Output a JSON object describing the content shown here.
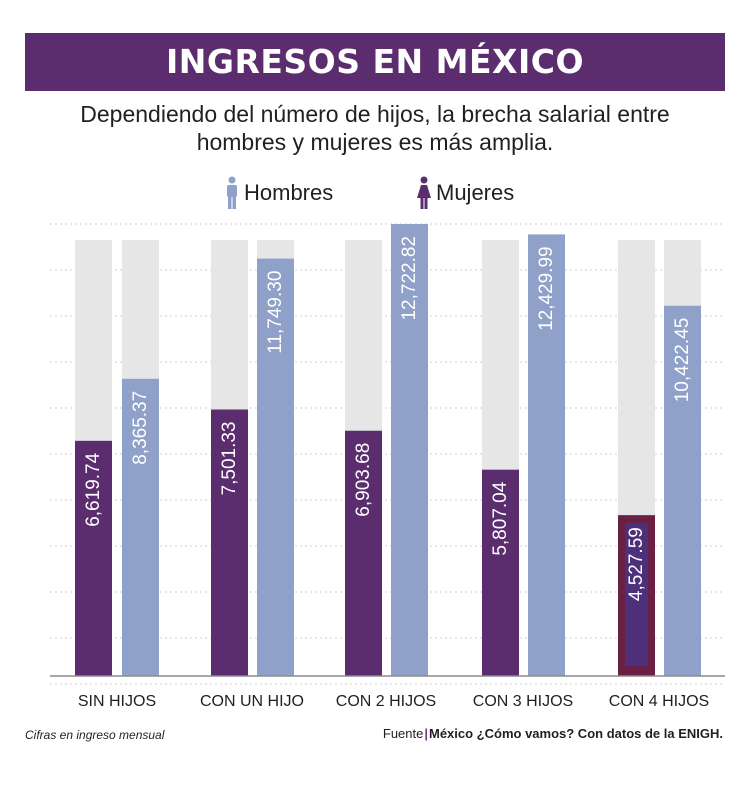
{
  "header": {
    "title": "INGRESOS EN MÉXICO",
    "subtitle_line1": "Dependiendo del número de hijos, la brecha salarial entre",
    "subtitle_line2": "hombres y mujeres es más amplia."
  },
  "legend": {
    "men_label": "Hombres",
    "women_label": "Mujeres",
    "men_icon": "man-icon",
    "women_icon": "woman-icon"
  },
  "colors": {
    "women": "#5b2d6e",
    "women_highlight_outer": "#6a1f45",
    "women_highlight_inner": "#4e2f7a",
    "men": "#8fa1c9",
    "track": "#e6e6e6",
    "banner": "#5b2d6e"
  },
  "chart_data": {
    "type": "bar",
    "title": "INGRESOS EN MÉXICO",
    "xlabel": "",
    "ylabel": "",
    "ylim": [
      0,
      12722.82
    ],
    "grid": true,
    "categories": [
      "SIN HIJOS",
      "CON UN HIJO",
      "CON 2 HIJOS",
      "CON 3 HIJOS",
      "CON 4 HIJOS"
    ],
    "series": [
      {
        "name": "Mujeres",
        "values": [
          6619.74,
          7501.33,
          6903.68,
          5807.04,
          4527.59
        ],
        "labels": [
          "6,619.74",
          "7,501.33",
          "6,903.68",
          "5,807.04",
          "4,527.59"
        ]
      },
      {
        "name": "Hombres",
        "values": [
          8365.37,
          11749.3,
          12722.82,
          12429.99,
          10422.45
        ],
        "labels": [
          "8,365.37",
          "11,749.30",
          "12,722.82",
          "12,429.99",
          "10,422.45"
        ]
      }
    ]
  },
  "footer": {
    "note": "Cifras en ingreso mensual",
    "source_label": "Fuente",
    "source_separator": "|",
    "source_text": "México ¿Cómo vamos? Con datos de la ENIGH."
  }
}
